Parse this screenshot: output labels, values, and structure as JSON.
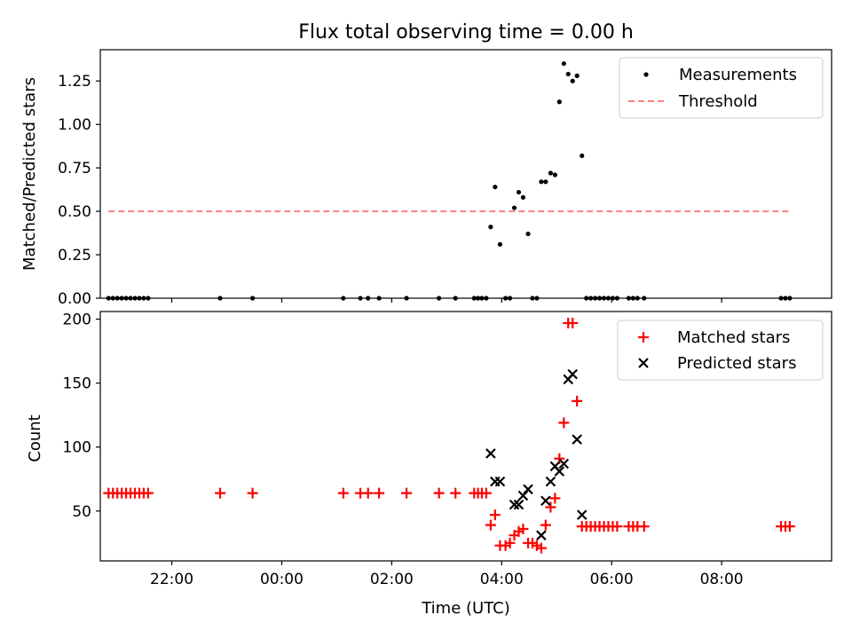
{
  "chart_data": [
    {
      "type": "scatter",
      "title": "Flux total observing time = 0.00 h",
      "xlabel": "",
      "ylabel": "Matched/Predicted stars",
      "xlim": [
        -3.3,
        10.0
      ],
      "ylim": [
        0,
        1.43
      ],
      "xticks": [
        -2,
        0,
        2,
        4,
        6,
        8
      ],
      "yticks": [
        0.0,
        0.25,
        0.5,
        0.75,
        1.0,
        1.25
      ],
      "ytick_labels": [
        "0.00",
        "0.25",
        "0.50",
        "0.75",
        "1.00",
        "1.25"
      ],
      "legend": {
        "position": "top-right",
        "entries": [
          "Measurements",
          "Threshold"
        ]
      },
      "series": [
        {
          "name": "Measurements",
          "marker": "dot",
          "color": "#000000",
          "x": [
            -3.15,
            -3.07,
            -2.99,
            -2.91,
            -2.83,
            -2.75,
            -2.67,
            -2.59,
            -2.51,
            -2.43,
            -1.12,
            -0.53,
            1.12,
            1.43,
            1.57,
            1.77,
            2.27,
            2.86,
            3.16,
            3.5,
            3.57,
            3.64,
            3.72,
            3.8,
            3.88,
            3.97,
            4.07,
            4.15,
            4.23,
            4.31,
            4.39,
            4.48,
            4.56,
            4.64,
            4.72,
            4.8,
            4.89,
            4.97,
            5.05,
            5.13,
            5.21,
            5.29,
            5.37,
            5.46,
            5.54,
            5.62,
            5.7,
            5.78,
            5.86,
            5.94,
            6.02,
            6.1,
            6.31,
            6.39,
            6.47,
            6.59,
            9.08,
            9.16,
            9.24
          ],
          "y": [
            0,
            0,
            0,
            0,
            0,
            0,
            0,
            0,
            0,
            0,
            0,
            0,
            0,
            0,
            0,
            0,
            0,
            0,
            0,
            0,
            0,
            0,
            0,
            0.41,
            0.64,
            0.31,
            0,
            0,
            0.52,
            0.61,
            0.58,
            0.37,
            0,
            0,
            0.67,
            0.67,
            0.72,
            0.71,
            1.13,
            1.35,
            1.29,
            1.25,
            1.28,
            0.82,
            0,
            0,
            0,
            0,
            0,
            0,
            0,
            0,
            0,
            0,
            0,
            0,
            0,
            0,
            0
          ]
        },
        {
          "name": "Threshold",
          "style": "dashed",
          "color": "#ff7f7f",
          "x": [
            -3.15,
            9.24
          ],
          "y": [
            0.5,
            0.5
          ]
        }
      ]
    },
    {
      "type": "scatter",
      "title": "",
      "xlabel": "Time (UTC)",
      "ylabel": "Count",
      "xlim": [
        -3.3,
        10.0
      ],
      "ylim": [
        11,
        206
      ],
      "xticks": [
        -2,
        0,
        2,
        4,
        6,
        8
      ],
      "xtick_labels": [
        "22:00",
        "00:00",
        "02:00",
        "04:00",
        "06:00",
        "08:00"
      ],
      "yticks": [
        50,
        100,
        150,
        200
      ],
      "ytick_labels": [
        "50",
        "100",
        "150",
        "200"
      ],
      "legend": {
        "position": "top-right",
        "entries": [
          "Matched stars",
          "Predicted stars"
        ]
      },
      "series": [
        {
          "name": "Matched stars",
          "marker": "plus",
          "color": "#ff0000",
          "x": [
            -3.15,
            -3.07,
            -2.99,
            -2.91,
            -2.83,
            -2.75,
            -2.67,
            -2.59,
            -2.51,
            -2.43,
            -1.12,
            -0.53,
            1.12,
            1.43,
            1.57,
            1.77,
            2.27,
            2.86,
            3.16,
            3.5,
            3.57,
            3.64,
            3.72,
            3.8,
            3.88,
            3.97,
            4.07,
            4.15,
            4.23,
            4.31,
            4.39,
            4.48,
            4.56,
            4.64,
            4.72,
            4.8,
            4.89,
            4.97,
            5.05,
            5.13,
            5.21,
            5.29,
            5.37,
            5.46,
            5.54,
            5.62,
            5.7,
            5.78,
            5.86,
            5.94,
            6.02,
            6.1,
            6.31,
            6.39,
            6.47,
            6.59,
            9.08,
            9.16,
            9.24
          ],
          "y": [
            64,
            64,
            64,
            64,
            64,
            64,
            64,
            64,
            64,
            64,
            64,
            64,
            64,
            64,
            64,
            64,
            64,
            64,
            64,
            64,
            64,
            64,
            64,
            39,
            47,
            23,
            23,
            25,
            31,
            34,
            36,
            25,
            25,
            23,
            21,
            39,
            53,
            60,
            91,
            119,
            197,
            197,
            136,
            38,
            38,
            38,
            38,
            38,
            38,
            38,
            38,
            38,
            38,
            38,
            38,
            38,
            38,
            38,
            38
          ]
        },
        {
          "name": "Predicted stars",
          "marker": "x",
          "color": "#000000",
          "x": [
            3.8,
            3.88,
            3.97,
            4.23,
            4.31,
            4.39,
            4.48,
            4.72,
            4.8,
            4.89,
            4.97,
            5.05,
            5.13,
            5.21,
            5.29,
            5.37,
            5.46
          ],
          "y": [
            95,
            73,
            73,
            55,
            55,
            62,
            67,
            31,
            58,
            73,
            85,
            81,
            87,
            153,
            157,
            106,
            47
          ]
        }
      ]
    }
  ]
}
